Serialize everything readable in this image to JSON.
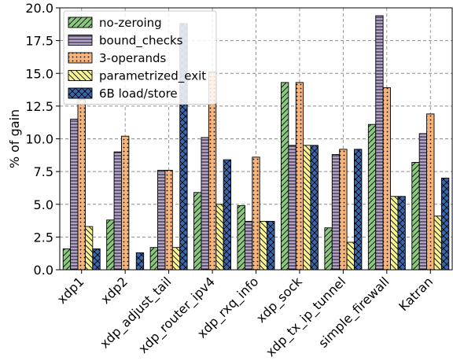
{
  "chart_data": {
    "type": "bar",
    "title": "",
    "xlabel": "",
    "ylabel": "% of gain",
    "ylim": [
      0,
      20
    ],
    "yticks": [
      "0.0",
      "2.5",
      "5.0",
      "7.5",
      "10.0",
      "12.5",
      "15.0",
      "17.5",
      "20.0"
    ],
    "grid": true,
    "legend_position": "top-left",
    "categories": [
      "xdp1",
      "xdp2",
      "xdp_adjust_tail",
      "xdp_router_ipv4",
      "xdp_rxq_info",
      "xdp_sock",
      "xdp_tx_ip_tunnel",
      "simple_firewall",
      "Katran"
    ],
    "series": [
      {
        "name": "no-zeroing",
        "color": "#8cc97e",
        "hatch": "diagonal",
        "values": [
          1.6,
          3.8,
          1.7,
          5.9,
          4.9,
          14.3,
          3.2,
          11.1,
          8.2
        ]
      },
      {
        "name": "bound_checks",
        "color": "#b3a2c9",
        "hatch": "horizontal",
        "values": [
          11.5,
          9.0,
          7.6,
          10.1,
          3.7,
          9.5,
          8.8,
          19.4,
          10.4
        ]
      },
      {
        "name": "3-operands",
        "color": "#f4b47c",
        "hatch": "dots",
        "values": [
          13.0,
          10.2,
          7.6,
          15.1,
          8.6,
          14.3,
          9.2,
          13.9,
          11.9
        ]
      },
      {
        "name": "parametrized_exit",
        "color": "#f8f58f",
        "hatch": "backslash",
        "values": [
          3.3,
          0,
          1.7,
          5.0,
          3.7,
          9.5,
          2.1,
          5.6,
          4.1
        ]
      },
      {
        "name": "6B load/store",
        "color": "#3a67ad",
        "hatch": "cross",
        "values": [
          1.6,
          1.3,
          18.8,
          8.4,
          3.7,
          9.5,
          9.2,
          5.6,
          7.0
        ]
      }
    ]
  }
}
